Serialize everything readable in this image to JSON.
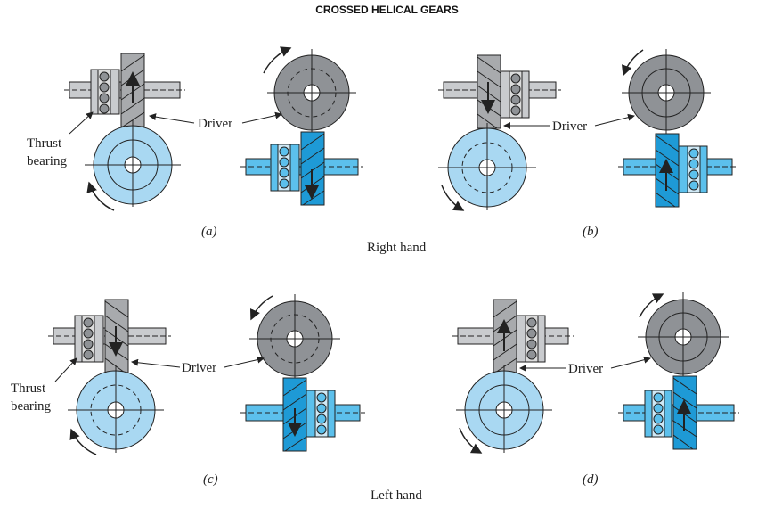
{
  "title": "CROSSED HELICAL GEARS",
  "labels": {
    "driver": "Driver",
    "thrust_line1": "Thrust",
    "thrust_line2": "bearing"
  },
  "panels": [
    {
      "id": "a",
      "caption": "(a)"
    },
    {
      "id": "b",
      "caption": "(b)"
    },
    {
      "id": "c",
      "caption": "(c)"
    },
    {
      "id": "d",
      "caption": "(d)"
    }
  ],
  "groups": {
    "right_hand": "Right hand",
    "left_hand": "Left hand"
  },
  "colors": {
    "gear_gray": "#8f9296",
    "gear_gray_dark": "#6d7074",
    "gear_blue": "#a9d8f2",
    "gear_blue_dark": "#1e9ad6",
    "shaft_gray": "#c9cbce",
    "shaft_blue": "#5cc0ec",
    "outline": "#222222"
  }
}
